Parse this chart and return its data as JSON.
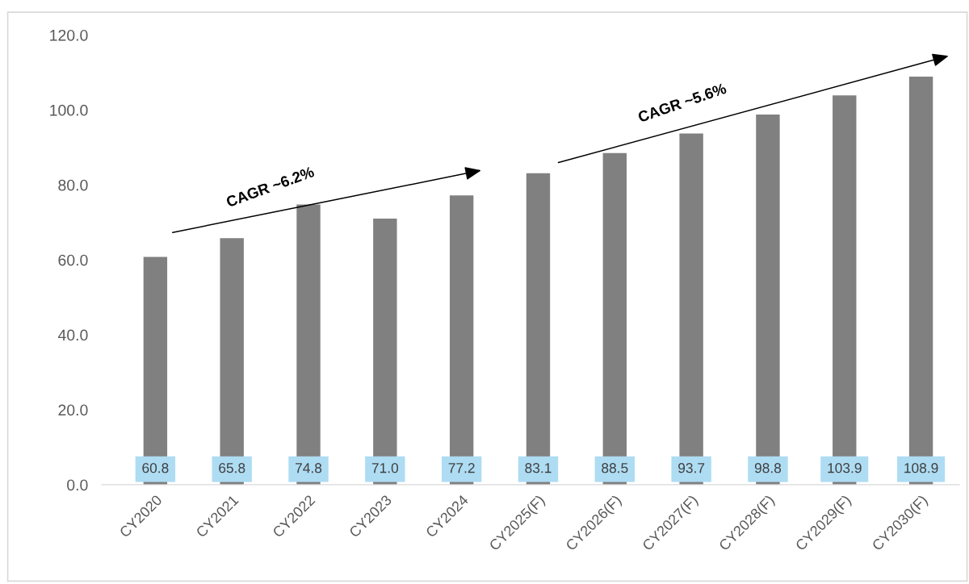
{
  "chart_data": {
    "type": "bar",
    "categories": [
      "CY2020",
      "CY2021",
      "CY2022",
      "CY2023",
      "CY2024",
      "CY2025(F)",
      "CY2026(F)",
      "CY2027(F)",
      "CY2028(F)",
      "CY2029(F)",
      "CY2030(F)"
    ],
    "values": [
      60.8,
      65.8,
      74.8,
      71.0,
      77.2,
      83.1,
      88.5,
      93.7,
      98.8,
      103.9,
      108.9
    ],
    "color": "#808080",
    "ylim": [
      0,
      120
    ],
    "yticks": [
      {
        "value": 0,
        "label": "0.0"
      },
      {
        "value": 20,
        "label": "20.0"
      },
      {
        "value": 40,
        "label": "40.0"
      },
      {
        "value": 60,
        "label": "60.0"
      },
      {
        "value": 80,
        "label": "80.0"
      },
      {
        "value": 100,
        "label": "100.0"
      },
      {
        "value": 120,
        "label": "120.0"
      }
    ],
    "grid": false,
    "legend": false,
    "value_labels": [
      "60.8",
      "65.8",
      "74.8",
      "71.0",
      "77.2",
      "83.1",
      "88.5",
      "93.7",
      "98.8",
      "103.9",
      "108.9"
    ],
    "annotations": [
      "CAGR ~6.2%",
      "CAGR ~5.6%"
    ]
  }
}
